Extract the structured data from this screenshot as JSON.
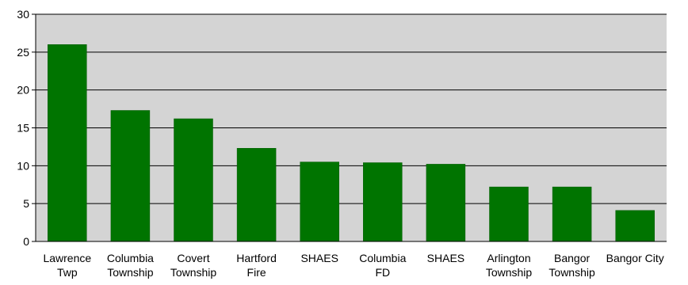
{
  "colors": {
    "bar": "#007400",
    "bar_edge": "#005a00",
    "plot_background": "#d4d4d4",
    "gridline": "#000000"
  },
  "chart_data": {
    "type": "bar",
    "categories": [
      [
        "Lawrence",
        "Twp"
      ],
      [
        "Columbia",
        "Township"
      ],
      [
        "Covert",
        "Township"
      ],
      [
        "Hartford",
        "Fire"
      ],
      [
        "SHAES"
      ],
      [
        "Columbia",
        "FD"
      ],
      [
        "SHAES"
      ],
      [
        "Arlington",
        "Township"
      ],
      [
        "Bangor",
        "Township"
      ],
      [
        "Bangor City"
      ]
    ],
    "values": [
      26,
      17.3,
      16.2,
      12.3,
      10.5,
      10.4,
      10.2,
      7.2,
      7.2,
      4.1
    ],
    "ylim": [
      0,
      30
    ],
    "yticks": [
      "0",
      "5",
      "10",
      "15",
      "20",
      "25",
      "30"
    ],
    "grid": true,
    "title": "",
    "xlabel": "",
    "ylabel": ""
  }
}
